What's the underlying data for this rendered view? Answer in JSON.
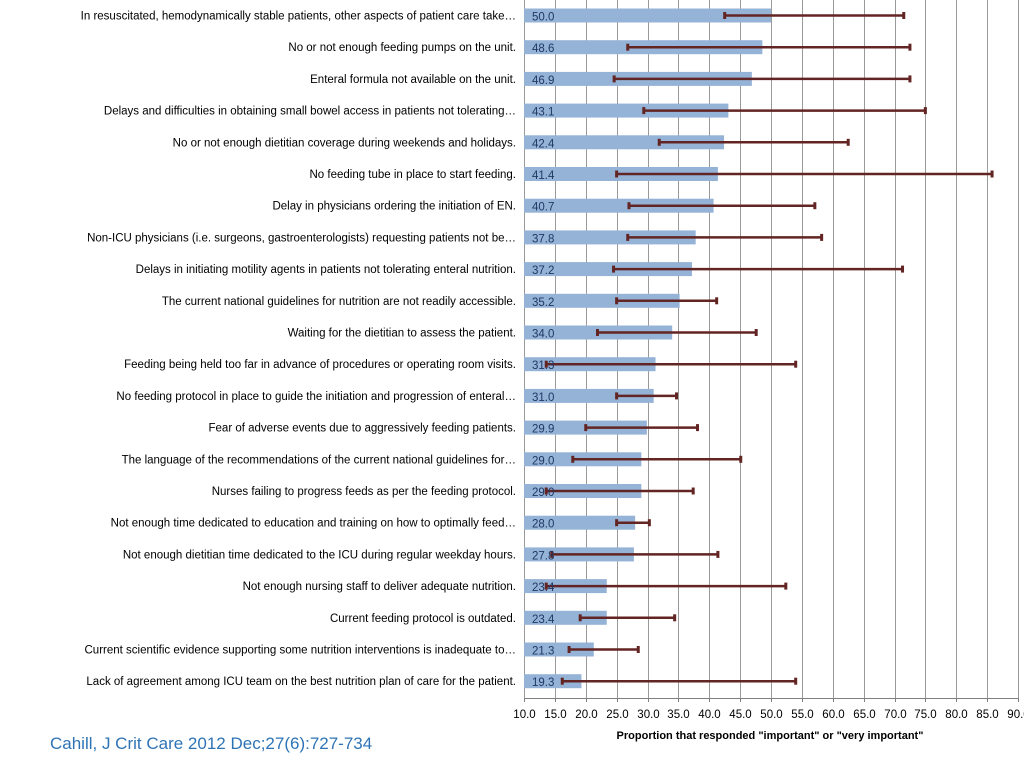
{
  "chart_data": {
    "type": "bar",
    "orientation": "horizontal",
    "xlabel": "Proportion that responded \"important\" or \"very important\"",
    "xlim": [
      10.0,
      90.0
    ],
    "x_ticks": [
      "10.0",
      "15.0",
      "20.0",
      "25.0",
      "30.0",
      "35.0",
      "40.0",
      "45.0",
      "50.0",
      "55.0",
      "60.0",
      "65.0",
      "70.0",
      "75.0",
      "80.0",
      "85.0",
      "90.0"
    ],
    "grid": "vertical",
    "bar_color": "#95b3d7",
    "error_bar_color": "#632523",
    "categories": [
      "In resuscitated, hemodynamically stable patients, other aspects of patient care take…",
      "No or not enough feeding pumps on the unit.",
      "Enteral formula not available on the unit.",
      "Delays and difficulties in obtaining small bowel access in patients not tolerating…",
      "No or not enough dietitian coverage during weekends and holidays.",
      "No feeding tube in place to start feeding.",
      "Delay in physicians ordering the initiation of EN.",
      "Non-ICU physicians (i.e. surgeons, gastroenterologists) requesting patients not be…",
      "Delays in initiating motility agents in patients not tolerating enteral nutrition.",
      "The current national guidelines for nutrition are not readily accessible.",
      "Waiting for the dietitian to assess the patient.",
      "Feeding being held too far in advance of procedures or operating room visits.",
      "No feeding protocol in place to guide the initiation and progression of enteral…",
      "Fear of adverse events due to aggressively feeding patients.",
      "The language of the recommendations of the current national guidelines for…",
      "Nurses failing to progress feeds as per the feeding protocol.",
      "Not enough time dedicated to education and training on how to optimally feed…",
      "Not enough dietitian time dedicated to the ICU during regular weekday hours.",
      "Not enough nursing staff to deliver adequate nutrition.",
      "Current feeding protocol is outdated.",
      "Current scientific evidence supporting some nutrition interventions is inadequate to…",
      "Lack of agreement among ICU team on the best nutrition plan of care for the patient."
    ],
    "value_labels": [
      "50.0",
      "48.6",
      "46.9",
      "43.1",
      "42.4",
      "41.4",
      "40.7",
      "37.8",
      "37.2",
      "35.2",
      "34.0",
      "31.3",
      "31.0",
      "29.9",
      "29.0",
      "29.0",
      "28.0",
      "27.8",
      "23.4",
      "23.4",
      "21.3",
      "19.3"
    ],
    "values": [
      50.0,
      48.6,
      46.9,
      43.1,
      42.4,
      41.4,
      40.7,
      37.8,
      37.2,
      35.2,
      34.0,
      31.3,
      31.0,
      29.9,
      29.0,
      29.0,
      28.0,
      27.8,
      23.4,
      23.4,
      21.3,
      19.3
    ],
    "error_low": [
      42.5,
      26.8,
      24.6,
      29.4,
      31.9,
      25.0,
      27.0,
      26.8,
      24.5,
      25.0,
      21.9,
      13.6,
      25.0,
      20.0,
      17.9,
      13.6,
      25.0,
      14.5,
      13.6,
      19.1,
      17.3,
      16.2
    ],
    "error_high": [
      71.5,
      72.5,
      72.5,
      75.0,
      62.5,
      85.8,
      57.1,
      58.2,
      71.3,
      41.2,
      47.6,
      54.0,
      34.7,
      38.1,
      45.1,
      37.4,
      30.3,
      41.4,
      52.4,
      34.4,
      28.5,
      54.0
    ]
  },
  "citation": "Cahill, J Crit Care 2012 Dec;27(6):727-734"
}
